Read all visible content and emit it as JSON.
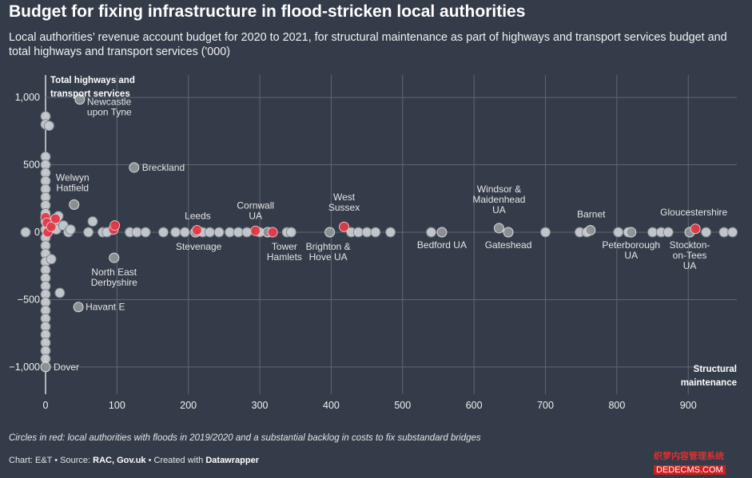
{
  "header": {
    "title": "Budget for fixing infrastructure in flood-stricken local authorities",
    "subtitle": "Local authorities’ revenue account budget for 2020 to 2021, for structural maintenance as part of highways and transport services budget and total highways and transport services ('000)"
  },
  "footer": {
    "note": "Circles in red: local authorities with floods in 2019/2020 and a substantial backlog in costs to fix substandard bridges",
    "source_prefix": "Chart: E&T • Source: ",
    "source_names": "RAC, Gov.uk",
    "source_mid": " • Created with ",
    "source_tool": "Datawrapper"
  },
  "watermark": {
    "line1": "织梦内容管理系统",
    "line2": "DEDECMS.COM"
  },
  "colors": {
    "background": "#333c48",
    "grey_dot": "#c8cdd2",
    "labelled_dot": "#8f9596",
    "red_dot": "#e03a4a",
    "gridline": "#5f6772"
  },
  "chart_data": {
    "type": "scatter",
    "xlabel": "Structural maintenance",
    "ylabel": "Total highways and transport services",
    "xlim": [
      0,
      965
    ],
    "ylim": [
      -1050,
      1050
    ],
    "x_ticks": [
      0,
      100,
      200,
      300,
      400,
      500,
      600,
      700,
      800,
      900
    ],
    "y_ticks": [
      1000,
      500,
      0,
      -500,
      -1000
    ],
    "x_tick_labels": [
      "0",
      "100",
      "200",
      "300",
      "400",
      "500",
      "600",
      "700",
      "800",
      "900"
    ],
    "y_tick_labels": [
      "1,000",
      "500",
      "0",
      "−500",
      "−1,000"
    ],
    "grid": true,
    "series": [
      {
        "group": "other",
        "points": [
          {
            "x": -28,
            "y": 0
          },
          {
            "x": 0,
            "y": 860
          },
          {
            "x": 0,
            "y": 800
          },
          {
            "x": 0,
            "y": 560
          },
          {
            "x": 0,
            "y": 500
          },
          {
            "x": 0,
            "y": 440
          },
          {
            "x": 0,
            "y": 380
          },
          {
            "x": 0,
            "y": 320
          },
          {
            "x": 0,
            "y": 260
          },
          {
            "x": 0,
            "y": 200
          },
          {
            "x": 0,
            "y": 140
          },
          {
            "x": 0,
            "y": 80
          },
          {
            "x": 0,
            "y": 20
          },
          {
            "x": 0,
            "y": -40
          },
          {
            "x": 0,
            "y": -100
          },
          {
            "x": 0,
            "y": -160
          },
          {
            "x": 0,
            "y": -220
          },
          {
            "x": 0,
            "y": -280
          },
          {
            "x": 0,
            "y": -340
          },
          {
            "x": 0,
            "y": -400
          },
          {
            "x": 0,
            "y": -460
          },
          {
            "x": 0,
            "y": -520
          },
          {
            "x": 0,
            "y": -580
          },
          {
            "x": 0,
            "y": -640
          },
          {
            "x": 0,
            "y": -700
          },
          {
            "x": 0,
            "y": -760
          },
          {
            "x": 0,
            "y": -820
          },
          {
            "x": 0,
            "y": -880
          },
          {
            "x": 0,
            "y": -940
          },
          {
            "x": 5,
            "y": 790
          },
          {
            "x": 8,
            "y": -200
          },
          {
            "x": 12,
            "y": 60
          },
          {
            "x": 15,
            "y": 20
          },
          {
            "x": 18,
            "y": 120
          },
          {
            "x": 20,
            "y": -450
          },
          {
            "x": 25,
            "y": 50
          },
          {
            "x": 32,
            "y": 0
          },
          {
            "x": 35,
            "y": 20
          },
          {
            "x": 60,
            "y": 0
          },
          {
            "x": 66,
            "y": 80
          },
          {
            "x": 80,
            "y": 0
          },
          {
            "x": 86,
            "y": 0
          },
          {
            "x": 118,
            "y": 0
          },
          {
            "x": 128,
            "y": 0
          },
          {
            "x": 140,
            "y": 0
          },
          {
            "x": 165,
            "y": 0
          },
          {
            "x": 182,
            "y": 0
          },
          {
            "x": 195,
            "y": 0
          },
          {
            "x": 220,
            "y": 0
          },
          {
            "x": 230,
            "y": 0
          },
          {
            "x": 243,
            "y": 0
          },
          {
            "x": 258,
            "y": 0
          },
          {
            "x": 270,
            "y": 0
          },
          {
            "x": 282,
            "y": 0
          },
          {
            "x": 300,
            "y": 0
          },
          {
            "x": 338,
            "y": 0
          },
          {
            "x": 344,
            "y": 0
          },
          {
            "x": 428,
            "y": 0
          },
          {
            "x": 438,
            "y": 0
          },
          {
            "x": 450,
            "y": 0
          },
          {
            "x": 462,
            "y": 0
          },
          {
            "x": 483,
            "y": 0
          },
          {
            "x": 540,
            "y": 0
          },
          {
            "x": 700,
            "y": 0
          },
          {
            "x": 748,
            "y": 0
          },
          {
            "x": 758,
            "y": 0
          },
          {
            "x": 802,
            "y": 0
          },
          {
            "x": 816,
            "y": 0
          },
          {
            "x": 850,
            "y": 0
          },
          {
            "x": 862,
            "y": 0
          },
          {
            "x": 872,
            "y": 0
          },
          {
            "x": 925,
            "y": 0
          },
          {
            "x": 950,
            "y": 0
          },
          {
            "x": 962,
            "y": 0
          }
        ]
      },
      {
        "group": "labelled",
        "points": [
          {
            "x": 48,
            "y": 985,
            "label": "Newcastle upon Tyne"
          },
          {
            "x": 124,
            "y": 480,
            "label": "Breckland"
          },
          {
            "x": 40,
            "y": 205,
            "label": "Welwyn Hatfield"
          },
          {
            "x": 96,
            "y": -190,
            "label": "North East Derbyshire"
          },
          {
            "x": 46,
            "y": -555,
            "label": "Havant E"
          },
          {
            "x": 0,
            "y": -1000,
            "label": "Dover"
          },
          {
            "x": 210,
            "y": 0,
            "label": "Stevenage"
          },
          {
            "x": 311,
            "y": 0,
            "label": "Tower Hamlets"
          },
          {
            "x": 398,
            "y": 0,
            "label": "Brighton & Hove UA"
          },
          {
            "x": 555,
            "y": 0,
            "label": "Bedford UA"
          },
          {
            "x": 635,
            "y": 30,
            "label": "Windsor & Maidenhead UA"
          },
          {
            "x": 648,
            "y": 0,
            "label": "Gateshead"
          },
          {
            "x": 763,
            "y": 15,
            "label": "Barnet"
          },
          {
            "x": 820,
            "y": 0,
            "label": "Peterborough UA"
          },
          {
            "x": 902,
            "y": 0,
            "label": "Stockton-on-Tees UA"
          }
        ]
      },
      {
        "group": "red",
        "points": [
          {
            "x": 0,
            "y": 110
          },
          {
            "x": 2,
            "y": 70
          },
          {
            "x": 3,
            "y": 0
          },
          {
            "x": 8,
            "y": 40
          },
          {
            "x": 14,
            "y": 100
          },
          {
            "x": 95,
            "y": 20
          },
          {
            "x": 97,
            "y": 50
          },
          {
            "x": 212,
            "y": 15,
            "label": "Leeds"
          },
          {
            "x": 294,
            "y": 10,
            "label": "Cornwall UA"
          },
          {
            "x": 318,
            "y": 0
          },
          {
            "x": 418,
            "y": 40,
            "label": "West Sussex"
          },
          {
            "x": 910,
            "y": 25,
            "label": "Gloucestershire"
          }
        ]
      }
    ]
  }
}
